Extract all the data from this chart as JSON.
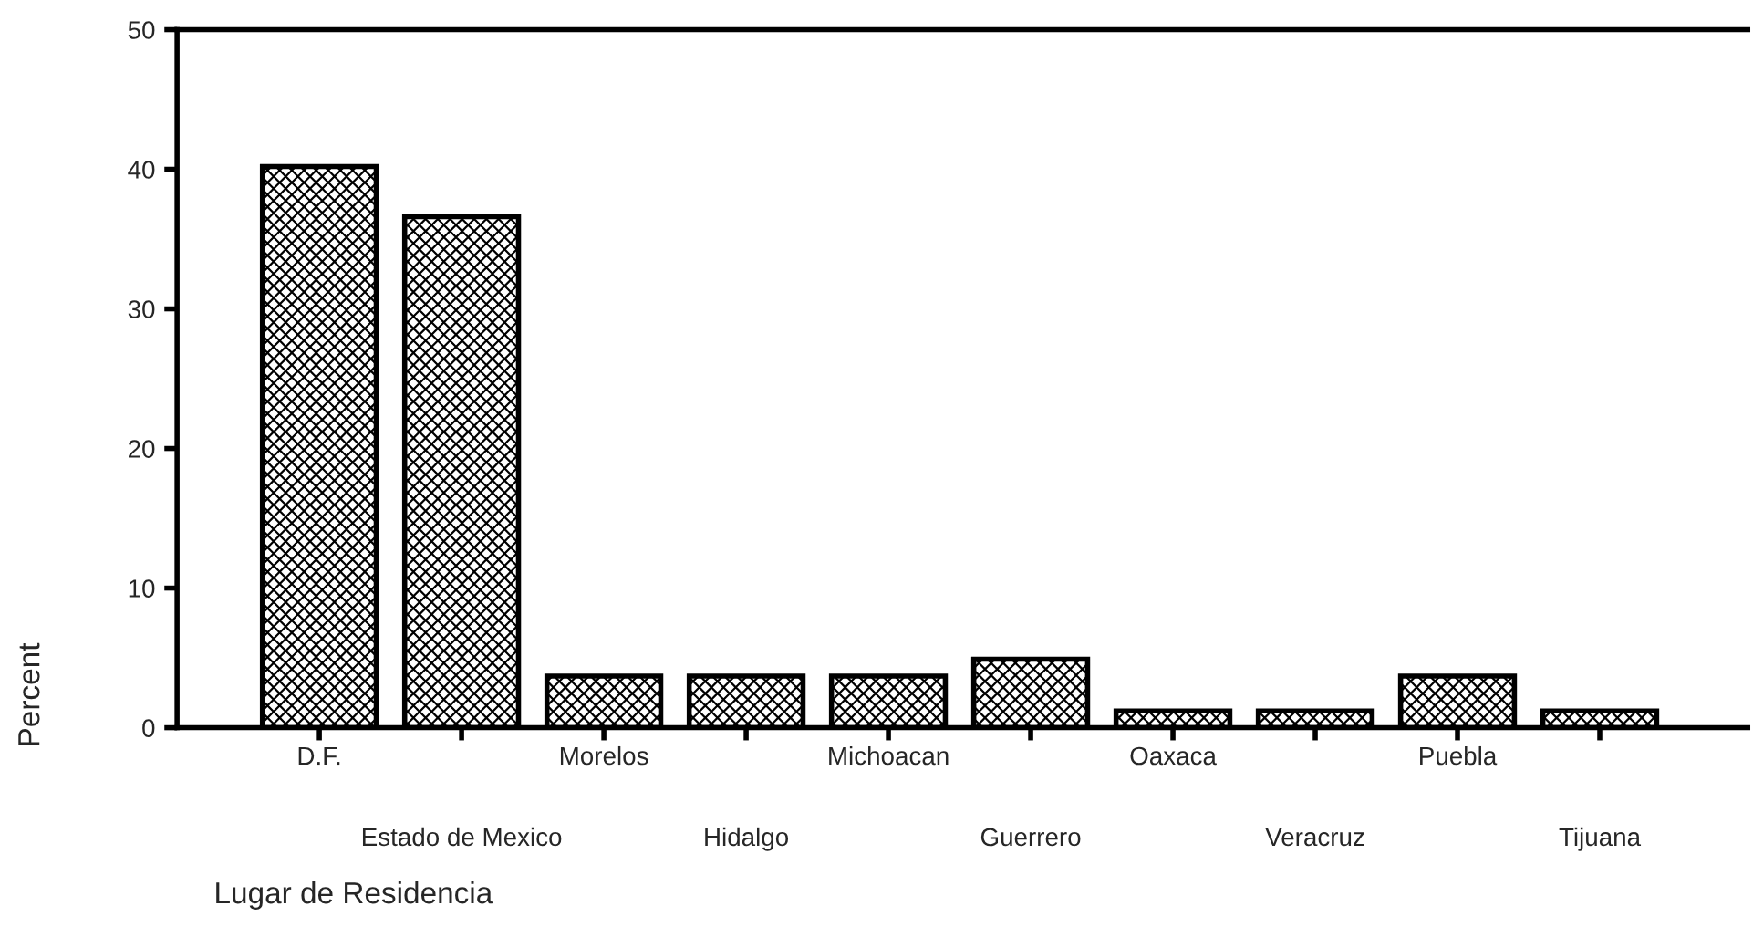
{
  "chart_data": {
    "type": "bar",
    "xlabel": "Lugar de Residencia",
    "ylabel": "Percent",
    "categories": [
      "D.F.",
      "Estado de Mexico",
      "Morelos",
      "Hidalgo",
      "Michoacan",
      "Guerrero",
      "Oaxaca",
      "Veracruz",
      "Puebla",
      "Tijuana"
    ],
    "values": [
      40.2,
      36.6,
      3.7,
      3.7,
      3.7,
      4.9,
      1.2,
      1.2,
      3.7,
      1.2
    ],
    "color": "#000000",
    "ylim": [
      0,
      50
    ],
    "yticks": [
      0,
      10,
      20,
      30,
      40,
      50
    ],
    "grid": false,
    "legend": false
  }
}
